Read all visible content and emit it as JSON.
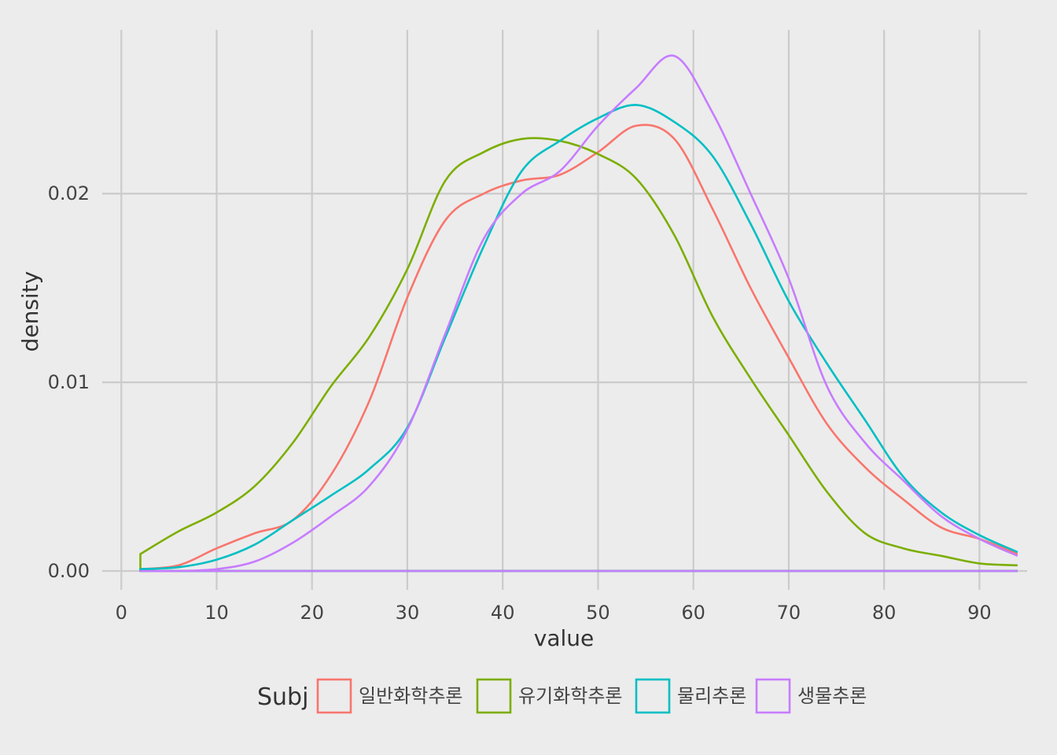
{
  "chart_data": {
    "type": "line",
    "subtype": "density",
    "title": "",
    "xlabel": "value",
    "ylabel": "density",
    "xlim": [
      -2,
      95
    ],
    "ylim": [
      -0.001,
      0.02868
    ],
    "x_ticks": [
      0,
      10,
      20,
      30,
      40,
      50,
      60,
      70,
      80,
      90
    ],
    "x_tick_labels": [
      "0",
      "10",
      "20",
      "30",
      "40",
      "50",
      "60",
      "70",
      "80",
      "90"
    ],
    "y_ticks": [
      0,
      0.01,
      0.02
    ],
    "y_tick_labels": [
      "0.00",
      "0.01",
      "0.02"
    ],
    "grid": true,
    "legend": {
      "title": "Subj",
      "position": "bottom"
    },
    "x": [
      2,
      6,
      10,
      14,
      18,
      22,
      26,
      30,
      34,
      38,
      42,
      46,
      50,
      54,
      58,
      62,
      66,
      70,
      74,
      78,
      82,
      86,
      90,
      94
    ],
    "series": [
      {
        "name": "일반화학추론",
        "color": "#F8766D",
        "values": [
          0.0001,
          0.0003,
          0.0012,
          0.002,
          0.0027,
          0.0051,
          0.009,
          0.0145,
          0.0186,
          0.02,
          0.0207,
          0.021,
          0.0222,
          0.0236,
          0.0229,
          0.0192,
          0.015,
          0.0113,
          0.0078,
          0.0055,
          0.0038,
          0.0023,
          0.0017,
          0.0009
        ]
      },
      {
        "name": "유기화학추론",
        "color": "#7CAE00",
        "values": [
          0.0009,
          0.0021,
          0.0031,
          0.0045,
          0.0068,
          0.0098,
          0.0124,
          0.016,
          0.0207,
          0.0222,
          0.0229,
          0.0228,
          0.0221,
          0.0208,
          0.0178,
          0.0135,
          0.0102,
          0.0072,
          0.0042,
          0.002,
          0.0012,
          0.0008,
          0.0004,
          0.0003
        ]
      },
      {
        "name": "물리추론",
        "color": "#00BFC4",
        "values": [
          0.0001,
          0.0002,
          0.0006,
          0.0014,
          0.0027,
          0.004,
          0.0054,
          0.0076,
          0.0124,
          0.0172,
          0.0212,
          0.0228,
          0.024,
          0.0247,
          0.0238,
          0.022,
          0.0184,
          0.0143,
          0.011,
          0.008,
          0.005,
          0.0031,
          0.0019,
          0.001
        ]
      },
      {
        "name": "생물추론",
        "color": "#C77CFF",
        "values": [
          0.0,
          0.0,
          0.0001,
          0.0005,
          0.0015,
          0.0029,
          0.0045,
          0.0075,
          0.0126,
          0.0176,
          0.02,
          0.0212,
          0.0236,
          0.0256,
          0.0273,
          0.0243,
          0.02,
          0.0155,
          0.0098,
          0.0068,
          0.0048,
          0.0029,
          0.0017,
          0.0008
        ]
      }
    ]
  }
}
